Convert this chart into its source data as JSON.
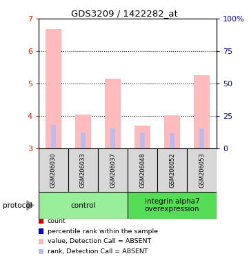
{
  "title": "GDS3209 / 1422282_at",
  "samples": [
    "GSM206030",
    "GSM206033",
    "GSM206037",
    "GSM206048",
    "GSM206052",
    "GSM206053"
  ],
  "groups": [
    {
      "name": "control",
      "indices": [
        0,
        1,
        2
      ],
      "color": "#99ee99"
    },
    {
      "name": "integrin alpha7\noverexpression",
      "indices": [
        3,
        4,
        5
      ],
      "color": "#55dd55"
    }
  ],
  "value_bars": [
    6.68,
    4.05,
    5.15,
    3.7,
    4.02,
    5.25
  ],
  "rank_bars": [
    3.73,
    3.48,
    3.62,
    3.48,
    3.46,
    3.62
  ],
  "ylim_left": [
    3.0,
    7.0
  ],
  "ylim_right": [
    0,
    100
  ],
  "yticks_left": [
    3,
    4,
    5,
    6,
    7
  ],
  "yticks_right": [
    0,
    25,
    50,
    75,
    100
  ],
  "ytick_labels_right": [
    "0",
    "25",
    "50",
    "75",
    "100%"
  ],
  "value_bar_color": "#ffbbbb",
  "rank_bar_color": "#bbbbee",
  "legend": [
    {
      "color": "#cc0000",
      "label": "count"
    },
    {
      "color": "#0000cc",
      "label": "percentile rank within the sample"
    },
    {
      "color": "#ffbbbb",
      "label": "value, Detection Call = ABSENT"
    },
    {
      "color": "#bbbbee",
      "label": "rank, Detection Call = ABSENT"
    }
  ],
  "protocol_label": "protocol",
  "sample_box_color": "#d8d8d8",
  "left_tick_color": "#cc2200",
  "right_tick_color": "#0000cc"
}
